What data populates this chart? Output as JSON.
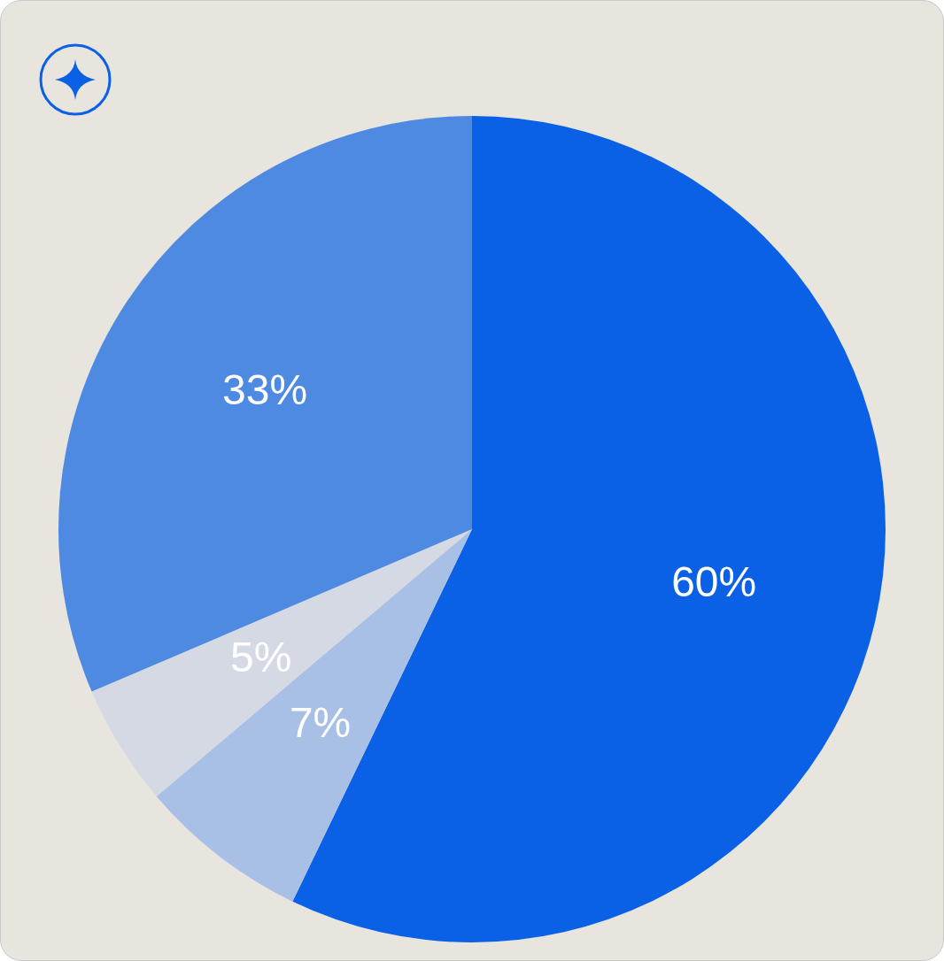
{
  "chart_data": {
    "type": "pie",
    "categories": [
      null,
      null,
      null,
      null
    ],
    "values": [
      60,
      7,
      5,
      33
    ],
    "colors": [
      "#0b61e6",
      "#a8bfe6",
      "#d4d9e4",
      "#4f8ae2"
    ],
    "value_labels": [
      "60%",
      "7%",
      "5%",
      "33%"
    ],
    "legend": false
  }
}
